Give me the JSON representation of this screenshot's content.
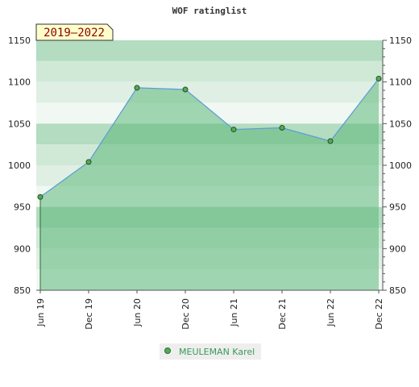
{
  "chart_data": {
    "type": "area",
    "title": "WOF ratinglist",
    "period_label": "2019–2022",
    "categories": [
      "Jun 19",
      "Dec 19",
      "Jun 20",
      "Dec 20",
      "Jun 21",
      "Dec 21",
      "Jun 22",
      "Dec 22"
    ],
    "series": [
      {
        "name": "MEULEMAN Karel",
        "values": [
          962,
          1004,
          1093,
          1091,
          1043,
          1045,
          1029,
          1104
        ]
      }
    ],
    "ylim": [
      850,
      1150
    ],
    "yticks": [
      "850",
      "900",
      "950",
      "1000",
      "1050",
      "1100",
      "1150"
    ],
    "ytick_values": [
      850,
      900,
      950,
      1000,
      1050,
      1100,
      1150
    ],
    "xlabel": "",
    "ylabel": "",
    "grid": true,
    "legend_position": "bottom-center",
    "colors": {
      "line": "#5b9bd5",
      "marker": "#4caf50",
      "area": "#5cb87a",
      "badge_bg": "#ffffcc",
      "legend_text": "#3a9a55"
    }
  }
}
